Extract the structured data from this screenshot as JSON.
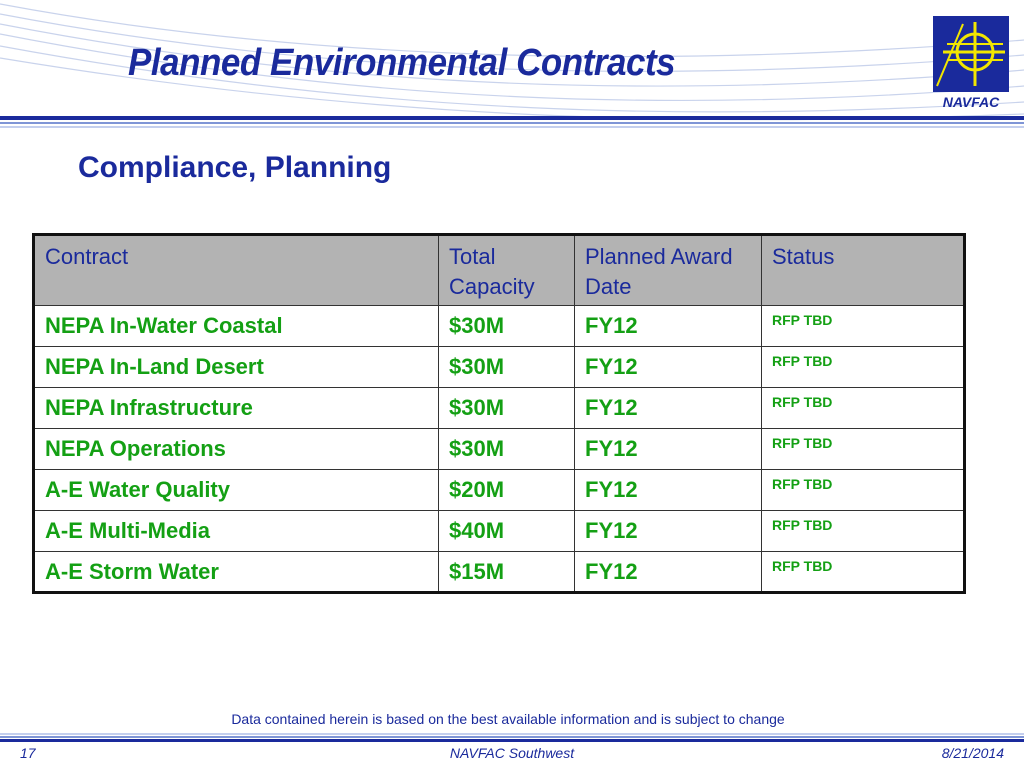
{
  "slide": {
    "title": "Planned Environmental Contracts",
    "subtitle": "Compliance, Planning",
    "logo_text": "NAVFAC"
  },
  "table": {
    "headers": {
      "contract": "Contract",
      "capacity": "Total Capacity",
      "award": "Planned Award Date",
      "status": "Status"
    },
    "rows": [
      {
        "contract": "NEPA  In-Water Coastal",
        "capacity": "$30M",
        "award": "FY12",
        "status": "RFP TBD"
      },
      {
        "contract": "NEPA  In-Land Desert",
        "capacity": "$30M",
        "award": "FY12",
        "status": "RFP TBD"
      },
      {
        "contract": "NEPA Infrastructure",
        "capacity": "$30M",
        "award": "FY12",
        "status": "RFP TBD"
      },
      {
        "contract": "NEPA Operations",
        "capacity": "$30M",
        "award": "FY12",
        "status": "RFP TBD"
      },
      {
        "contract": "A-E Water Quality",
        "capacity": "$20M",
        "award": "FY12",
        "status": "RFP TBD"
      },
      {
        "contract": "A-E Multi-Media",
        "capacity": "$40M",
        "award": "FY12",
        "status": "RFP TBD"
      },
      {
        "contract": "A-E Storm Water",
        "capacity": "$15M",
        "award": "FY12",
        "status": "RFP TBD"
      }
    ]
  },
  "footer": {
    "disclaimer": "Data contained herein is based on the best available information and is subject to change",
    "page_number": "17",
    "organization": "NAVFAC Southwest",
    "date": "8/21/2014"
  },
  "colors": {
    "title_blue": "#1a2a9c",
    "row_text_green": "#14a014",
    "header_gray": "#b3b3b3",
    "logo_yellow": "#f2e600"
  },
  "icons": {
    "logo": "navfac-crosshair-logo"
  }
}
